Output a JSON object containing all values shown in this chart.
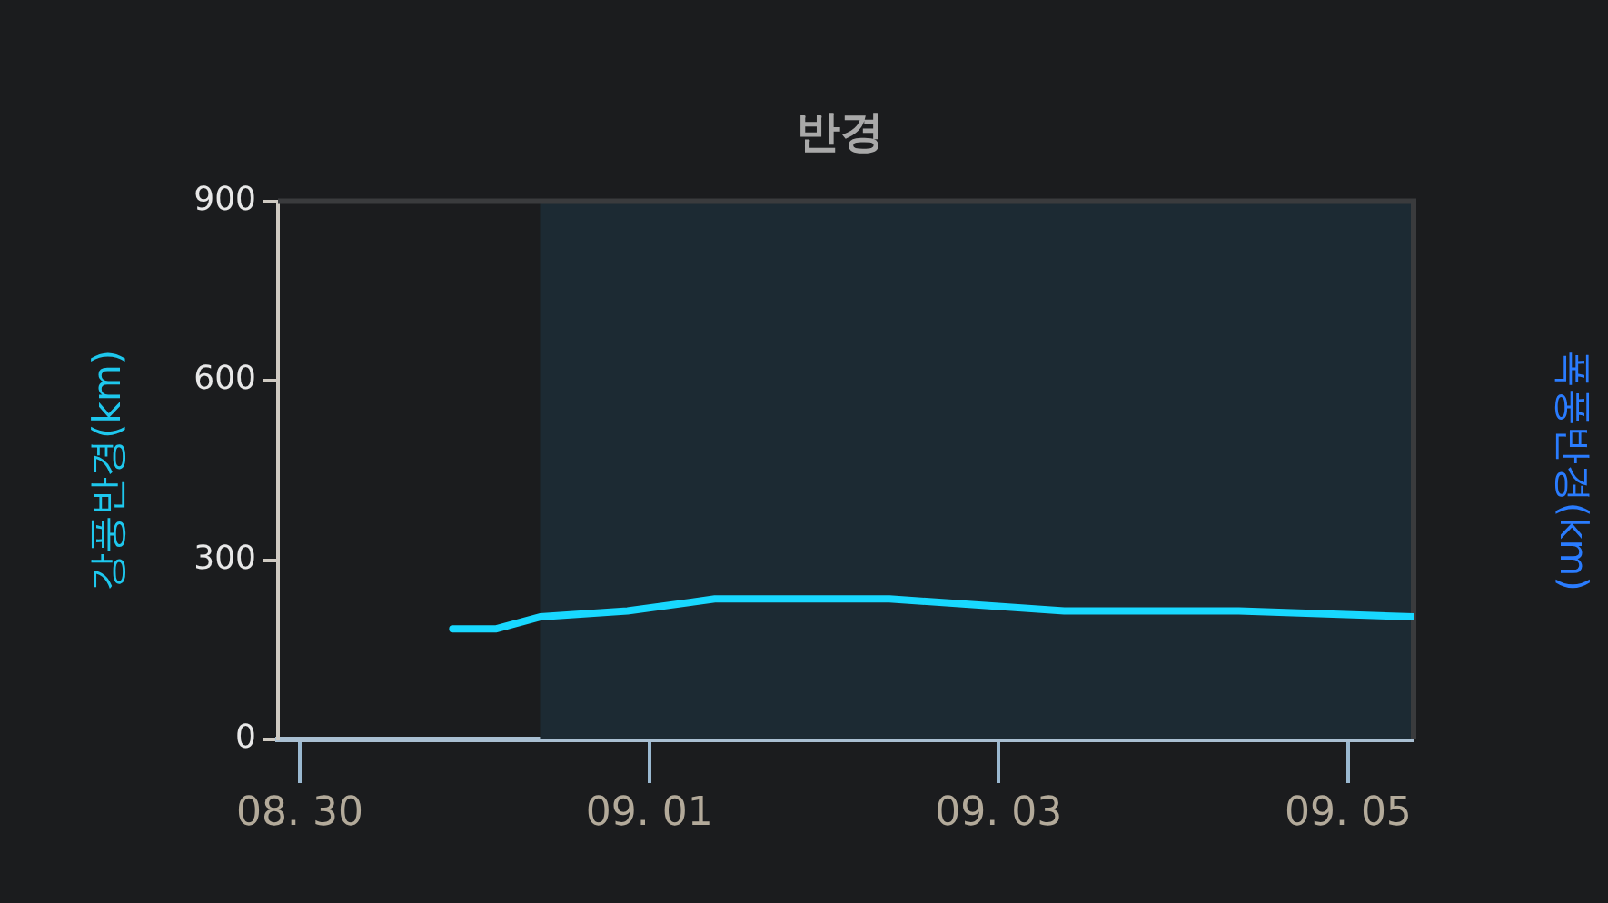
{
  "chart_data": {
    "type": "line",
    "title": "반경",
    "ylabel": "강풍반경(km)",
    "y2label": "폭풍반경(km)",
    "x": [
      "--08-30T21:00",
      "--08-31T03:00",
      "--08-31T09:00",
      "--08-31T21:00",
      "--09-01T09:00",
      "--09-02T09:00",
      "--09-03T09:00",
      "--09-04T09:00",
      "--09-05T09:00"
    ],
    "series": [
      {
        "color": "#18d8ff",
        "values": [
          185,
          185,
          205,
          215,
          235,
          235,
          215,
          215,
          205
        ]
      }
    ],
    "xlim": [
      "--08-29T21:00",
      "--09-05T09:00"
    ],
    "xticks": [
      {
        "value": "--08-30",
        "label": "08. 30"
      },
      {
        "value": "--09-01",
        "label": "09. 01"
      },
      {
        "value": "--09-03",
        "label": "09. 03"
      },
      {
        "value": "--09-05",
        "label": "09. 05"
      }
    ],
    "ylim": [
      0,
      900
    ],
    "yticks": [
      0,
      300,
      600,
      900
    ],
    "bands": [
      {
        "axis": "x",
        "from": "--08-31T09:00",
        "to": "--09-05T09:00",
        "color": "#1c2a33"
      }
    ],
    "grid": false,
    "legend": false,
    "marker": "none",
    "line_style": "solid"
  }
}
